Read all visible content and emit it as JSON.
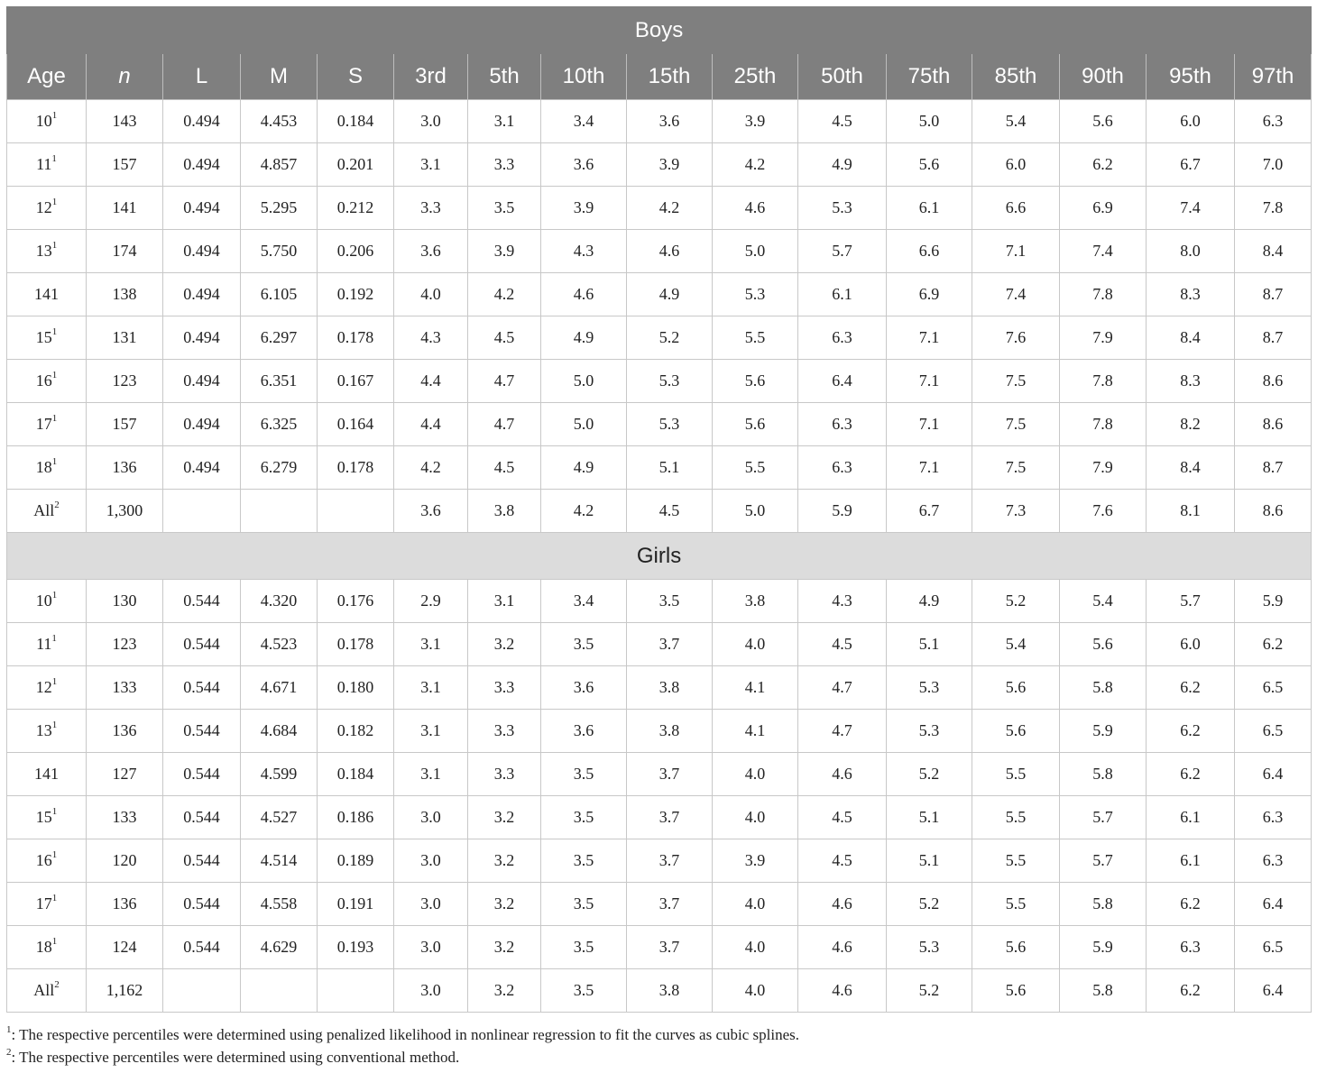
{
  "headers": [
    "Age",
    "n",
    "L",
    "M",
    "S",
    "3rd",
    "5th",
    "10th",
    "15th",
    "25th",
    "50th",
    "75th",
    "85th",
    "90th",
    "95th",
    "97th"
  ],
  "sections": [
    {
      "title": "Boys",
      "rows": [
        {
          "age": "10",
          "sup": "1",
          "cells": [
            "143",
            "0.494",
            "4.453",
            "0.184",
            "3.0",
            "3.1",
            "3.4",
            "3.6",
            "3.9",
            "4.5",
            "5.0",
            "5.4",
            "5.6",
            "6.0",
            "6.3"
          ]
        },
        {
          "age": "11",
          "sup": "1",
          "cells": [
            "157",
            "0.494",
            "4.857",
            "0.201",
            "3.1",
            "3.3",
            "3.6",
            "3.9",
            "4.2",
            "4.9",
            "5.6",
            "6.0",
            "6.2",
            "6.7",
            "7.0"
          ]
        },
        {
          "age": "12",
          "sup": "1",
          "cells": [
            "141",
            "0.494",
            "5.295",
            "0.212",
            "3.3",
            "3.5",
            "3.9",
            "4.2",
            "4.6",
            "5.3",
            "6.1",
            "6.6",
            "6.9",
            "7.4",
            "7.8"
          ]
        },
        {
          "age": "13",
          "sup": "1",
          "cells": [
            "174",
            "0.494",
            "5.750",
            "0.206",
            "3.6",
            "3.9",
            "4.3",
            "4.6",
            "5.0",
            "5.7",
            "6.6",
            "7.1",
            "7.4",
            "8.0",
            "8.4"
          ]
        },
        {
          "age": "141",
          "sup": "",
          "cells": [
            "138",
            "0.494",
            "6.105",
            "0.192",
            "4.0",
            "4.2",
            "4.6",
            "4.9",
            "5.3",
            "6.1",
            "6.9",
            "7.4",
            "7.8",
            "8.3",
            "8.7"
          ]
        },
        {
          "age": "15",
          "sup": "1",
          "cells": [
            "131",
            "0.494",
            "6.297",
            "0.178",
            "4.3",
            "4.5",
            "4.9",
            "5.2",
            "5.5",
            "6.3",
            "7.1",
            "7.6",
            "7.9",
            "8.4",
            "8.7"
          ]
        },
        {
          "age": "16",
          "sup": "1",
          "cells": [
            "123",
            "0.494",
            "6.351",
            "0.167",
            "4.4",
            "4.7",
            "5.0",
            "5.3",
            "5.6",
            "6.4",
            "7.1",
            "7.5",
            "7.8",
            "8.3",
            "8.6"
          ]
        },
        {
          "age": "17",
          "sup": "1",
          "cells": [
            "157",
            "0.494",
            "6.325",
            "0.164",
            "4.4",
            "4.7",
            "5.0",
            "5.3",
            "5.6",
            "6.3",
            "7.1",
            "7.5",
            "7.8",
            "8.2",
            "8.6"
          ]
        },
        {
          "age": "18",
          "sup": "1",
          "cells": [
            "136",
            "0.494",
            "6.279",
            "0.178",
            "4.2",
            "4.5",
            "4.9",
            "5.1",
            "5.5",
            "6.3",
            "7.1",
            "7.5",
            "7.9",
            "8.4",
            "8.7"
          ]
        },
        {
          "age": "All",
          "sup": "2",
          "cells": [
            "1,300",
            "",
            "",
            "",
            "3.6",
            "3.8",
            "4.2",
            "4.5",
            "5.0",
            "5.9",
            "6.7",
            "7.3",
            "7.6",
            "8.1",
            "8.6"
          ]
        }
      ]
    },
    {
      "title": "Girls",
      "rows": [
        {
          "age": "10",
          "sup": "1",
          "cells": [
            "130",
            "0.544",
            "4.320",
            "0.176",
            "2.9",
            "3.1",
            "3.4",
            "3.5",
            "3.8",
            "4.3",
            "4.9",
            "5.2",
            "5.4",
            "5.7",
            "5.9"
          ]
        },
        {
          "age": "11",
          "sup": "1",
          "cells": [
            "123",
            "0.544",
            "4.523",
            "0.178",
            "3.1",
            "3.2",
            "3.5",
            "3.7",
            "4.0",
            "4.5",
            "5.1",
            "5.4",
            "5.6",
            "6.0",
            "6.2"
          ]
        },
        {
          "age": "12",
          "sup": "1",
          "cells": [
            "133",
            "0.544",
            "4.671",
            "0.180",
            "3.1",
            "3.3",
            "3.6",
            "3.8",
            "4.1",
            "4.7",
            "5.3",
            "5.6",
            "5.8",
            "6.2",
            "6.5"
          ]
        },
        {
          "age": "13",
          "sup": "1",
          "cells": [
            "136",
            "0.544",
            "4.684",
            "0.182",
            "3.1",
            "3.3",
            "3.6",
            "3.8",
            "4.1",
            "4.7",
            "5.3",
            "5.6",
            "5.9",
            "6.2",
            "6.5"
          ]
        },
        {
          "age": "141",
          "sup": "",
          "cells": [
            "127",
            "0.544",
            "4.599",
            "0.184",
            "3.1",
            "3.3",
            "3.5",
            "3.7",
            "4.0",
            "4.6",
            "5.2",
            "5.5",
            "5.8",
            "6.2",
            "6.4"
          ]
        },
        {
          "age": "15",
          "sup": "1",
          "cells": [
            "133",
            "0.544",
            "4.527",
            "0.186",
            "3.0",
            "3.2",
            "3.5",
            "3.7",
            "4.0",
            "4.5",
            "5.1",
            "5.5",
            "5.7",
            "6.1",
            "6.3"
          ]
        },
        {
          "age": "16",
          "sup": "1",
          "cells": [
            "120",
            "0.544",
            "4.514",
            "0.189",
            "3.0",
            "3.2",
            "3.5",
            "3.7",
            "3.9",
            "4.5",
            "5.1",
            "5.5",
            "5.7",
            "6.1",
            "6.3"
          ]
        },
        {
          "age": "17",
          "sup": "1",
          "cells": [
            "136",
            "0.544",
            "4.558",
            "0.191",
            "3.0",
            "3.2",
            "3.5",
            "3.7",
            "4.0",
            "4.6",
            "5.2",
            "5.5",
            "5.8",
            "6.2",
            "6.4"
          ]
        },
        {
          "age": "18",
          "sup": "1",
          "cells": [
            "124",
            "0.544",
            "4.629",
            "0.193",
            "3.0",
            "3.2",
            "3.5",
            "3.7",
            "4.0",
            "4.6",
            "5.3",
            "5.6",
            "5.9",
            "6.3",
            "6.5"
          ]
        },
        {
          "age": "All",
          "sup": "2",
          "cells": [
            "1,162",
            "",
            "",
            "",
            "3.0",
            "3.2",
            "3.5",
            "3.8",
            "4.0",
            "4.6",
            "5.2",
            "5.6",
            "5.8",
            "6.2",
            "6.4"
          ]
        }
      ]
    }
  ],
  "footnotes": [
    {
      "mark": "1",
      "text": ": The respective percentiles were determined using penalized likelihood in nonlinear regression to fit the curves as cubic splines."
    },
    {
      "mark": "2",
      "text": ": The respective percentiles were determined using conventional method."
    }
  ]
}
